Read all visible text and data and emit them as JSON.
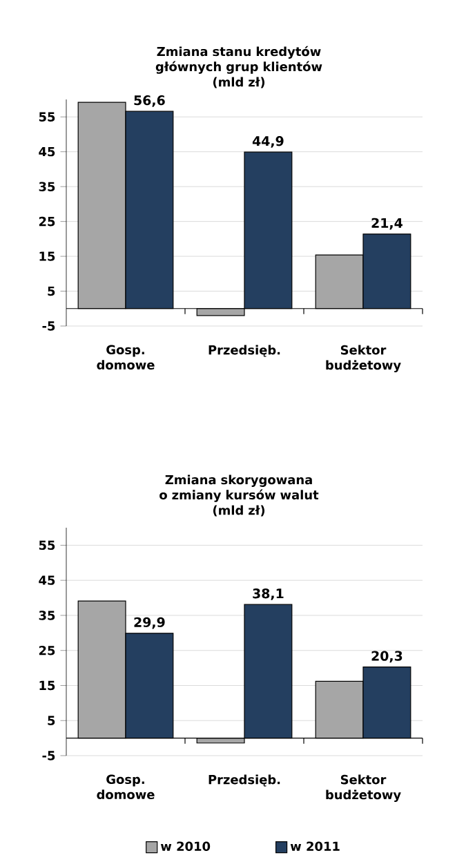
{
  "chart_data": [
    {
      "type": "bar",
      "title": "Zmiana  stanu kredytów głównych grup klientów",
      "subtitle": "(mld  zł)",
      "categories": [
        "Gosp. domowe",
        "Przedsięb.",
        "Sektor budżetowy"
      ],
      "series": [
        {
          "color": "#a6a6a6",
          "values": [
            59.2,
            -2.0,
            15.4
          ]
        },
        {
          "color": "#243f60",
          "values": [
            56.6,
            44.9,
            21.4
          ],
          "value_labels": [
            "56,6",
            "44,9",
            "21,4"
          ]
        }
      ],
      "ylim": [
        -5,
        60
      ],
      "yticks": [
        -5,
        5,
        15,
        25,
        35,
        45,
        55
      ],
      "grid": "y"
    },
    {
      "type": "bar",
      "title": "Zmiana  skorygowana o zmiany  kursów  walut",
      "subtitle": "(mld  zł)",
      "categories": [
        "Gosp. domowe",
        "Przedsięb.",
        "Sektor budżetowy"
      ],
      "series": [
        {
          "name": "w 2010",
          "color": "#a6a6a6",
          "values": [
            39.1,
            -1.4,
            16.2
          ]
        },
        {
          "name": "w 2011",
          "color": "#243f60",
          "values": [
            29.9,
            38.1,
            20.3
          ],
          "value_labels": [
            "29,9",
            "38,1",
            "20,3"
          ]
        }
      ],
      "ylim": [
        -5,
        60
      ],
      "yticks": [
        -5,
        5,
        15,
        25,
        35,
        45,
        55
      ],
      "grid": "y",
      "legend": "bottom"
    }
  ]
}
